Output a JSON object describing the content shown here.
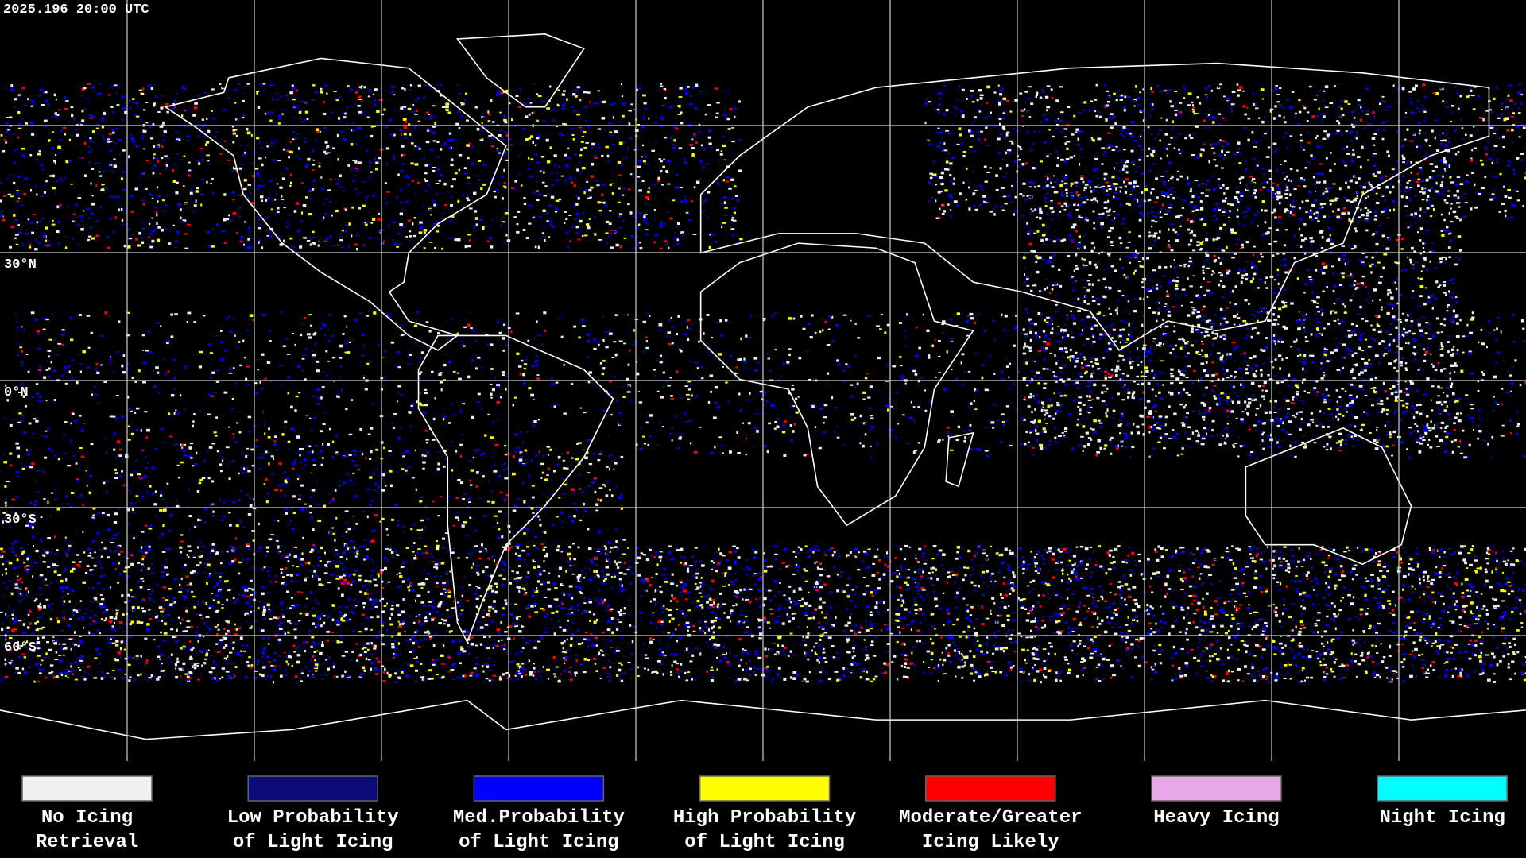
{
  "header": {
    "timestamp": "2025.196 20:00 UTC"
  },
  "map": {
    "latitude_labels": [
      "30°N",
      "0°N",
      "30°S",
      "60°S"
    ]
  },
  "legend": {
    "items": [
      {
        "lines": [
          "No Icing",
          "Retrieval"
        ],
        "color": "#f0f0f0"
      },
      {
        "lines": [
          "Low Probability",
          "of Light Icing"
        ],
        "color": "#0a0a78"
      },
      {
        "lines": [
          "Med.Probability",
          "of Light Icing"
        ],
        "color": "#0000ff"
      },
      {
        "lines": [
          "High Probability",
          "of Light Icing"
        ],
        "color": "#ffff00"
      },
      {
        "lines": [
          "Moderate/Greater",
          "Icing Likely"
        ],
        "color": "#ff0000"
      },
      {
        "lines": [
          "Heavy Icing"
        ],
        "color": "#e8a8e8"
      },
      {
        "lines": [
          "Night Icing"
        ],
        "color": "#00ffff"
      }
    ]
  }
}
